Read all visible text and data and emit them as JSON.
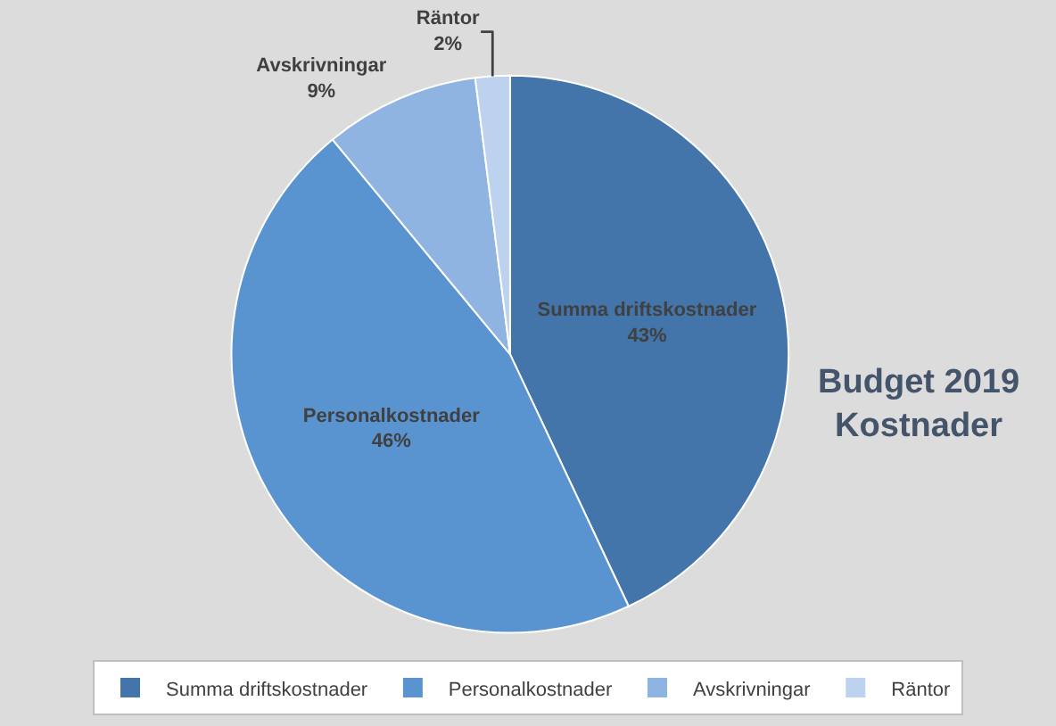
{
  "chart_data": {
    "type": "pie",
    "title": "Budget 2019\nKostnader",
    "categories": [
      "Summa driftskostnader",
      "Personalkostnader",
      "Avskrivningar",
      "Räntor"
    ],
    "values": [
      43,
      46,
      9,
      2
    ],
    "colors": [
      "#4375ab",
      "#5a94d0",
      "#8fb4e1",
      "#bcd2ee"
    ],
    "value_labels": [
      "43%",
      "46%",
      "9%",
      "2%"
    ],
    "legend": "bottom"
  }
}
